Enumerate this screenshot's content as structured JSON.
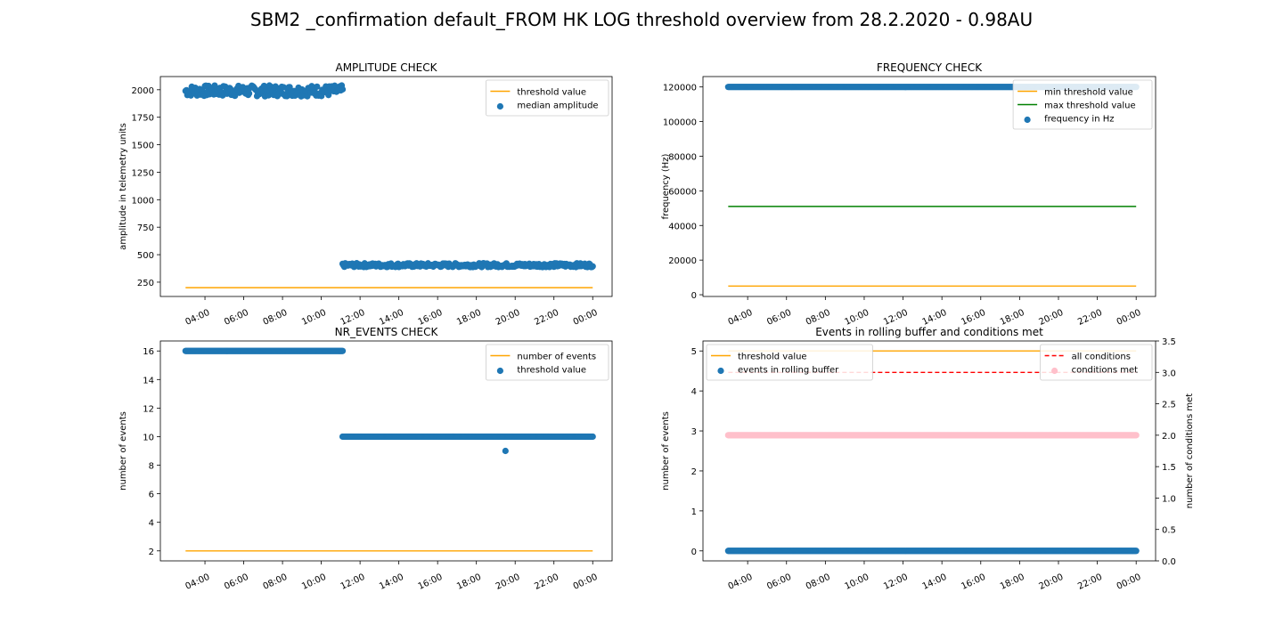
{
  "figure": {
    "title": "SBM2 _confirmation default_FROM HK LOG threshold overview from 28.2.2020 - 0.98AU"
  },
  "colors": {
    "blue": "#1f77b4",
    "orange": "#ffa500",
    "green": "#008000",
    "red": "#ff0000",
    "pink": "#ffc0cb"
  },
  "chart_data": [
    {
      "id": "amplitude",
      "type": "scatter",
      "title": "AMPLITUDE CHECK",
      "xlabel": "",
      "ylabel": "amplitude in telemetry units",
      "x_unit": "hours since 00:00",
      "x_tick_labels": [
        "04:00",
        "06:00",
        "08:00",
        "10:00",
        "12:00",
        "14:00",
        "16:00",
        "18:00",
        "20:00",
        "22:00",
        "00:00"
      ],
      "x_ticks": [
        4,
        6,
        8,
        10,
        12,
        14,
        16,
        18,
        20,
        22,
        24
      ],
      "xlim": [
        1.7,
        25.0
      ],
      "ylim": [
        120,
        2120
      ],
      "y_ticks": [
        250,
        500,
        750,
        1000,
        1250,
        1500,
        1750,
        2000
      ],
      "legend_position": "upper right",
      "series": [
        {
          "name": "threshold value",
          "kind": "line",
          "color": "#ffa500",
          "x": [
            3.0,
            24.0
          ],
          "y": [
            200,
            200
          ]
        },
        {
          "name": "median amplitude",
          "kind": "scatter",
          "color": "#1f77b4",
          "segments": [
            {
              "x_start": 3.0,
              "x_end": 11.1,
              "y_center": 1990,
              "y_spread": 50
            },
            {
              "x_start": 11.1,
              "x_end": 24.0,
              "y_center": 405,
              "y_spread": 18
            }
          ]
        }
      ]
    },
    {
      "id": "frequency",
      "type": "scatter",
      "title": "FREQUENCY CHECK",
      "xlabel": "",
      "ylabel": "frequency (Hz)",
      "x_unit": "hours since 00:00",
      "x_tick_labels": [
        "04:00",
        "06:00",
        "08:00",
        "10:00",
        "12:00",
        "14:00",
        "16:00",
        "18:00",
        "20:00",
        "22:00",
        "00:00"
      ],
      "x_ticks": [
        4,
        6,
        8,
        10,
        12,
        14,
        16,
        18,
        20,
        22,
        24
      ],
      "xlim": [
        1.7,
        25.0
      ],
      "ylim": [
        -1000,
        126000
      ],
      "y_ticks": [
        0,
        20000,
        40000,
        60000,
        80000,
        100000,
        120000
      ],
      "legend_position": "upper right",
      "series": [
        {
          "name": "min threshold value",
          "kind": "line",
          "color": "#ffa500",
          "x": [
            3.0,
            24.0
          ],
          "y": [
            5000,
            5000
          ]
        },
        {
          "name": "max threshold value",
          "kind": "line",
          "color": "#008000",
          "x": [
            3.0,
            24.0
          ],
          "y": [
            51000,
            51000
          ]
        },
        {
          "name": "frequency in Hz",
          "kind": "scatter",
          "color": "#1f77b4",
          "segments": [
            {
              "x_start": 3.0,
              "x_end": 24.0,
              "y_center": 120000,
              "y_spread": 0
            }
          ]
        }
      ]
    },
    {
      "id": "nr_events",
      "type": "scatter",
      "title": "NR_EVENTS CHECK",
      "xlabel": "",
      "ylabel": "number of events",
      "x_unit": "hours since 00:00",
      "x_tick_labels": [
        "04:00",
        "06:00",
        "08:00",
        "10:00",
        "12:00",
        "14:00",
        "16:00",
        "18:00",
        "20:00",
        "22:00",
        "00:00"
      ],
      "x_ticks": [
        4,
        6,
        8,
        10,
        12,
        14,
        16,
        18,
        20,
        22,
        24
      ],
      "xlim": [
        1.7,
        25.0
      ],
      "ylim": [
        1.3,
        16.7
      ],
      "y_ticks": [
        2,
        4,
        6,
        8,
        10,
        12,
        14,
        16
      ],
      "legend_position": "upper right",
      "series": [
        {
          "name": "number of events",
          "kind": "line",
          "color": "#ffa500",
          "x": [
            3.0,
            24.0
          ],
          "y": [
            2,
            2
          ]
        },
        {
          "name": "threshold value",
          "kind": "scatter",
          "color": "#1f77b4",
          "segments": [
            {
              "x_start": 3.0,
              "x_end": 11.1,
              "y_center": 16,
              "y_spread": 0
            },
            {
              "x_start": 11.1,
              "x_end": 24.0,
              "y_center": 10,
              "y_spread": 0
            }
          ],
          "points": [
            {
              "x": 19.5,
              "y": 9
            }
          ]
        }
      ]
    },
    {
      "id": "rolling_buffer",
      "type": "scatter",
      "title": "Events in rolling buffer and conditions met",
      "xlabel": "",
      "ylabel": "number of events",
      "ylabel_right": "number of conditions met",
      "x_unit": "hours since 00:00",
      "x_tick_labels": [
        "04:00",
        "06:00",
        "08:00",
        "10:00",
        "12:00",
        "14:00",
        "16:00",
        "18:00",
        "20:00",
        "22:00",
        "00:00"
      ],
      "x_ticks": [
        4,
        6,
        8,
        10,
        12,
        14,
        16,
        18,
        20,
        22,
        24
      ],
      "xlim": [
        1.7,
        25.0
      ],
      "ylim": [
        -0.25,
        5.25
      ],
      "y_ticks": [
        0,
        1,
        2,
        3,
        4,
        5
      ],
      "ylim_right": [
        0.0,
        3.5
      ],
      "y_ticks_right": [
        0.0,
        0.5,
        1.0,
        1.5,
        2.0,
        2.5,
        3.0,
        3.5
      ],
      "legend_position": "upper left",
      "legend_right_position": "upper right",
      "series": [
        {
          "name": "threshold value",
          "kind": "line",
          "axis": "left",
          "color": "#ffa500",
          "x": [
            3.0,
            24.0
          ],
          "y": [
            5,
            5
          ]
        },
        {
          "name": "events in rolling buffer",
          "kind": "scatter",
          "axis": "left",
          "color": "#1f77b4",
          "segments": [
            {
              "x_start": 3.0,
              "x_end": 24.0,
              "y_center": 0,
              "y_spread": 0
            }
          ]
        },
        {
          "name": "all conditions",
          "kind": "dashed-line",
          "axis": "right",
          "color": "#ff0000",
          "x": [
            3.0,
            24.0
          ],
          "y": [
            3,
            3
          ]
        },
        {
          "name": "conditions met",
          "kind": "scatter",
          "axis": "right",
          "color": "#ffc0cb",
          "segments": [
            {
              "x_start": 3.0,
              "x_end": 24.0,
              "y_center": 2,
              "y_spread": 0
            }
          ]
        }
      ]
    }
  ]
}
